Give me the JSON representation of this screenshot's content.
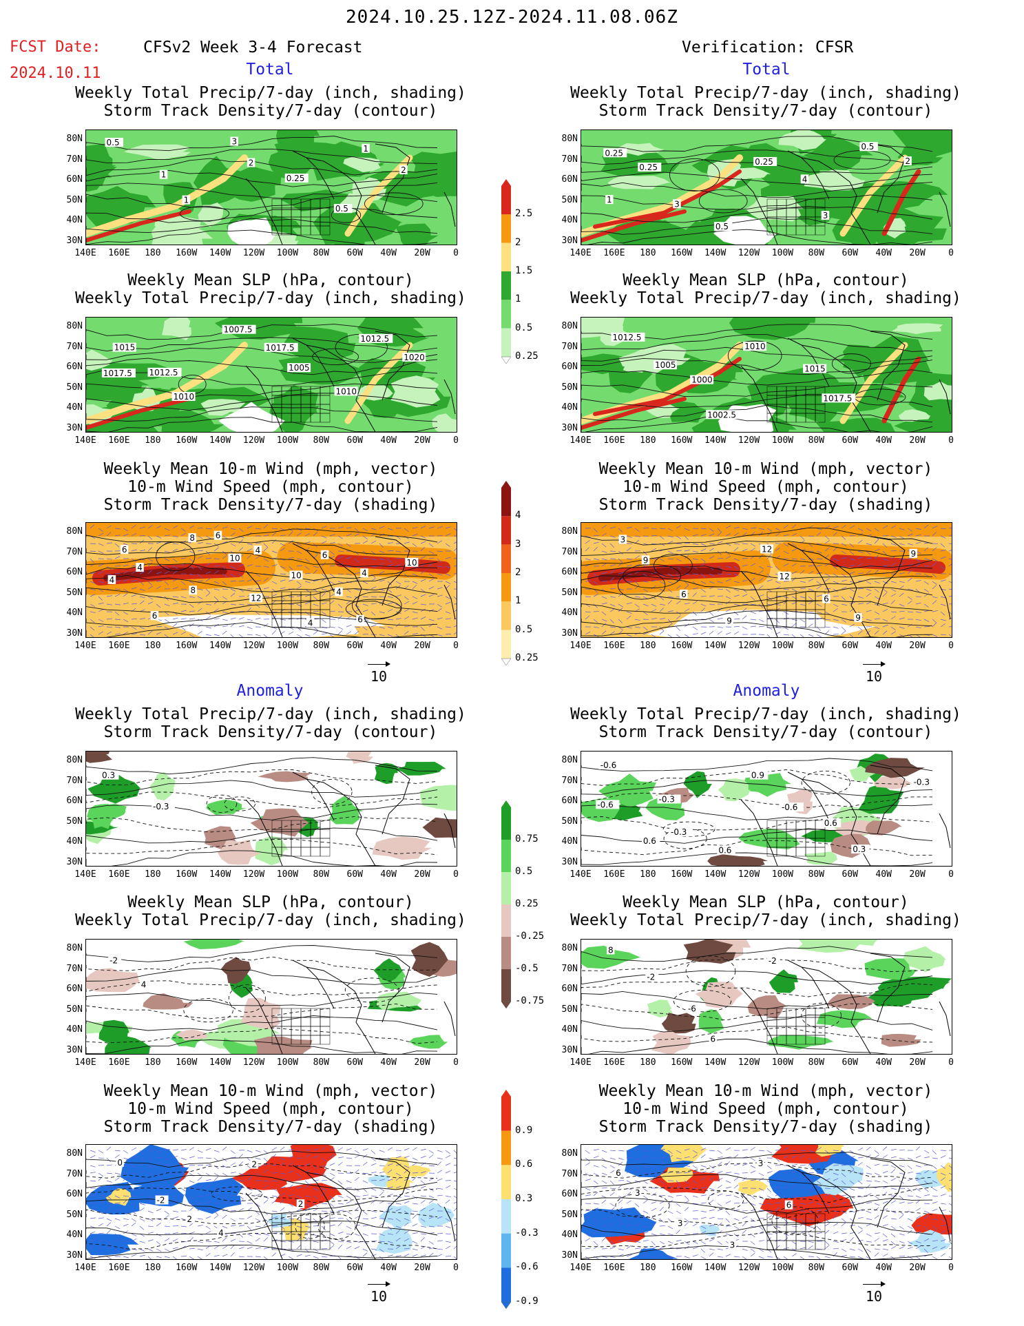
{
  "header": {
    "period": "2024.10.25.12Z-2024.11.08.06Z",
    "fcst_label": "FCST Date:",
    "fcst_date": "2024.10.11",
    "left_title": "CFSv2 Week 3-4 Forecast",
    "right_title": "Verification: CFSR"
  },
  "sections": {
    "total": "Total",
    "anomaly": "Anomaly"
  },
  "panel_titles": {
    "precip_storm": "Weekly Total Precip/7-day (inch, shading)\nStorm Track Density/7-day (contour)",
    "slp_precip": "Weekly Mean SLP (hPa, contour)\nWeekly Total Precip/7-day (inch, shading)",
    "wind_storm": "Weekly Mean 10-m Wind (mph, vector)\n10-m Wind Speed (mph, contour)\nStorm Track Density/7-day (shading)"
  },
  "axes": {
    "lat_labels": [
      "80N",
      "70N",
      "60N",
      "50N",
      "40N",
      "30N"
    ],
    "lon_labels": [
      "140E",
      "160E",
      "180",
      "160W",
      "140W",
      "120W",
      "100W",
      "80W",
      "60W",
      "40W",
      "20W",
      "0"
    ]
  },
  "vector_ref": "10",
  "colorbars": {
    "precip_total": {
      "labels": [
        "2.5",
        "2",
        "1.5",
        "1",
        "0.5",
        "0.25"
      ],
      "colors": [
        "#d8281e",
        "#f59a10",
        "#fde080",
        "#2ea82e",
        "#74dc6e",
        "#c6f2bc"
      ]
    },
    "storm_total": {
      "labels": [
        "4",
        "3",
        "2",
        "1",
        "0.5",
        "0.25"
      ],
      "colors": [
        "#8c1410",
        "#d22a18",
        "#f0621a",
        "#f59a10",
        "#fbc860",
        "#fdeeb0"
      ]
    },
    "precip_anom": {
      "labels": [
        "0.75",
        "0.5",
        "0.25",
        "-0.25",
        "-0.5",
        "-0.75"
      ],
      "colors": [
        "#1e9e28",
        "#5ad45a",
        "#b4f0a8",
        "#e6c8c0",
        "#b88c82",
        "#6e4a40"
      ]
    },
    "storm_anom": {
      "labels": [
        "0.9",
        "0.6",
        "0.3",
        "-0.3",
        "-0.6",
        "-0.9"
      ],
      "colors": [
        "#e8301a",
        "#f59a10",
        "#fde070",
        "#b8e4f8",
        "#60b4f0",
        "#1e6ee0"
      ]
    }
  },
  "contour_labels": {
    "l_precip_total": [
      "0.5",
      "1",
      "1",
      "3",
      "2",
      "0.25",
      "0.5",
      "1",
      "2"
    ],
    "r_precip_total": [
      "0.25",
      "0.25",
      "3",
      "0.5",
      "0.25",
      "4",
      "3",
      "0.5",
      "2",
      "1"
    ],
    "l_slp_total": [
      "1015",
      "1012.5",
      "1010",
      "1007.5",
      "1017.5",
      "1005",
      "1010",
      "1012.5",
      "1020",
      "1017.5"
    ],
    "r_slp_total": [
      "1012.5",
      "1005",
      "1000",
      "1002.5",
      "1010",
      "1015",
      "1017.5"
    ],
    "l_wind_total": [
      "6",
      "4",
      "8",
      "6",
      "4",
      "10",
      "4",
      "6",
      "10",
      "4",
      "6",
      "8",
      "10",
      "12",
      "4",
      "6",
      "4"
    ],
    "r_wind_total": [
      "3",
      "9",
      "6",
      "9",
      "12",
      "12",
      "6",
      "9",
      "9"
    ],
    "l_precip_anom": [
      "0.3",
      "-0.3"
    ],
    "r_precip_anom": [
      "-0.6",
      "-0.3",
      "-0.3",
      "0.6",
      "0.9",
      "-0.6",
      "0.6",
      "0.3",
      "-0.3",
      "-0.6",
      "0.6"
    ],
    "l_slp_anom": [
      "-2",
      "4"
    ],
    "r_slp_anom": [
      "8",
      "-2",
      "-6",
      "6",
      "-2"
    ],
    "l_wind_anom": [
      "0",
      "-2",
      "2",
      "4",
      "2",
      "2"
    ],
    "r_wind_anom": [
      "6",
      "3",
      "3",
      "3",
      "3",
      "6"
    ]
  }
}
